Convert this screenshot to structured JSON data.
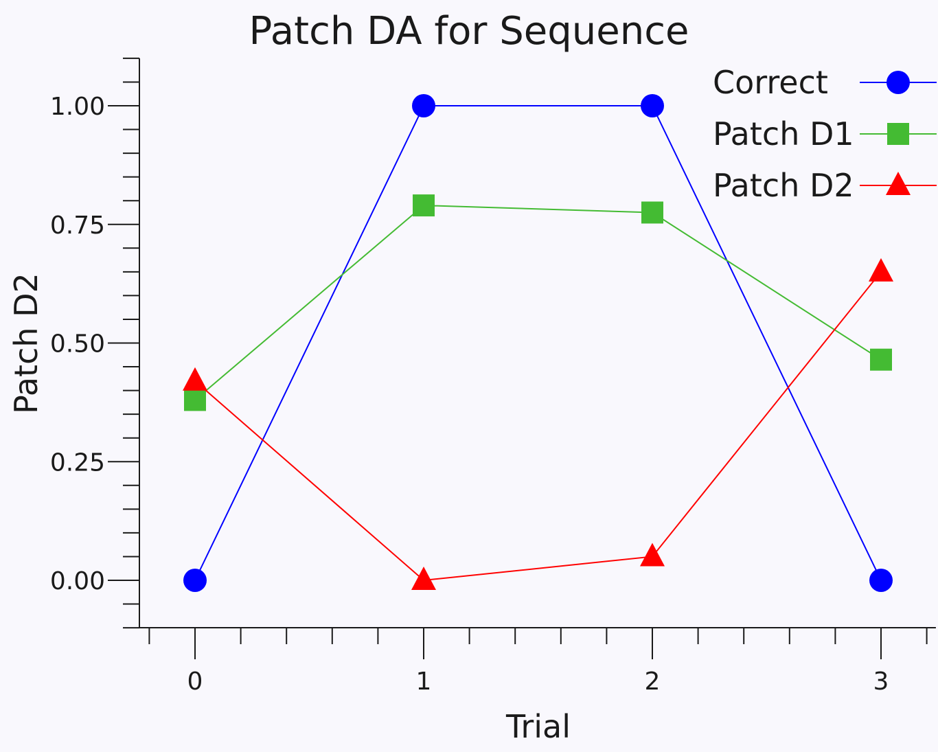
{
  "chart_data": {
    "type": "line",
    "title": "Patch DA for Sequence",
    "xlabel": "Trial",
    "ylabel": "Patch D2",
    "x": [
      0,
      1,
      2,
      3
    ],
    "xlim": [
      -0.2,
      3.24
    ],
    "ylim": [
      -0.1,
      1.1
    ],
    "x_ticks": [
      "0",
      "1",
      "2",
      "3"
    ],
    "y_ticks": [
      "0.00",
      "0.25",
      "0.50",
      "0.75",
      "1.00"
    ],
    "y_tick_values": [
      0,
      0.25,
      0.5,
      0.75,
      1.0
    ],
    "grid": false,
    "legend_position": "top-right",
    "series": [
      {
        "name": "Correct",
        "values": [
          0,
          1,
          1,
          0
        ],
        "color": "#0000ff",
        "marker": "circle"
      },
      {
        "name": "Patch D1",
        "values": [
          0.38,
          0.79,
          0.775,
          0.465
        ],
        "color": "#44bb33",
        "marker": "square"
      },
      {
        "name": "Patch D2",
        "values": [
          0.42,
          0,
          0.05,
          0.65
        ],
        "color": "#ff0000",
        "marker": "triangle"
      }
    ]
  }
}
